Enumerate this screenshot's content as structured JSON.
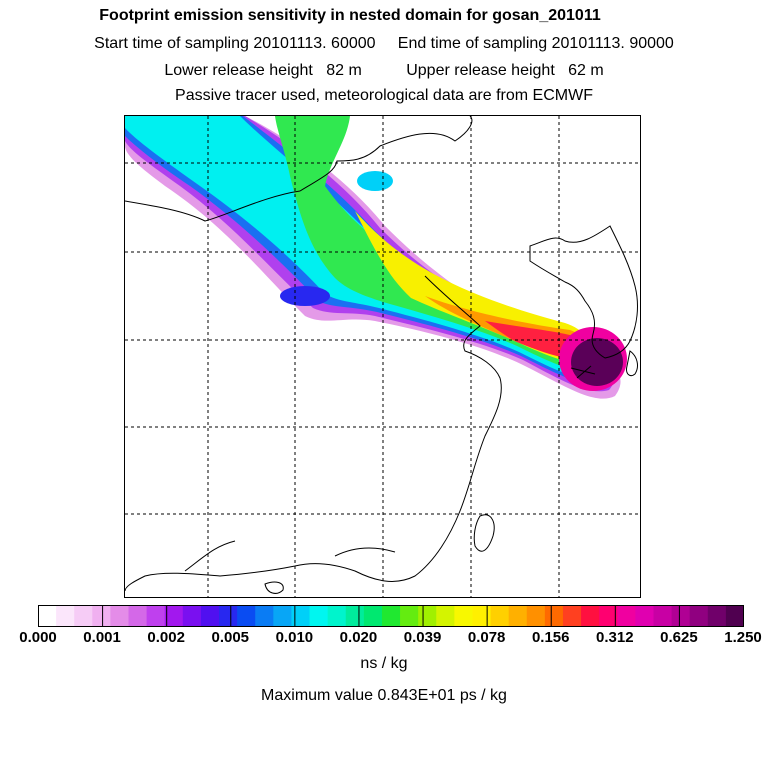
{
  "header": {
    "title": "Footprint emission sensitivity in nested domain for gosan_201011",
    "sampling_line": "Start time of sampling 20101113. 60000     End time of sampling 20101113. 90000",
    "height_line": "Lower release height   82 m          Upper release height   62 m",
    "tracer_line": "Passive tracer used, meteorological data are from ECMWF"
  },
  "colorbar": {
    "colors": [
      "#ffffff",
      "#fbe6fb",
      "#f6ccf6",
      "#f0b0f0",
      "#e48ce8",
      "#d468e8",
      "#bf40ee",
      "#a218ee",
      "#7a10f0",
      "#5010f0",
      "#2828f0",
      "#0a4cf2",
      "#0a7cf4",
      "#08a6f6",
      "#00d0f8",
      "#00f6f0",
      "#00f4cc",
      "#00ec9c",
      "#00e870",
      "#20e830",
      "#64ec10",
      "#a0f000",
      "#d4f400",
      "#f8f800",
      "#fff000",
      "#ffd000",
      "#ffb000",
      "#ff9000",
      "#ff6a00",
      "#ff4020",
      "#ff1040",
      "#ff0070",
      "#f000a0",
      "#e000b0",
      "#c800a4",
      "#b00094",
      "#900080",
      "#70006a",
      "#500050"
    ],
    "ticks": [
      "0.000",
      "0.001",
      "0.002",
      "0.005",
      "0.010",
      "0.020",
      "0.039",
      "0.078",
      "0.156",
      "0.312",
      "0.625",
      "1.250"
    ],
    "units": "ns / kg"
  },
  "footer": {
    "max_value": "Maximum value  0.843E+01 ps / kg"
  }
}
